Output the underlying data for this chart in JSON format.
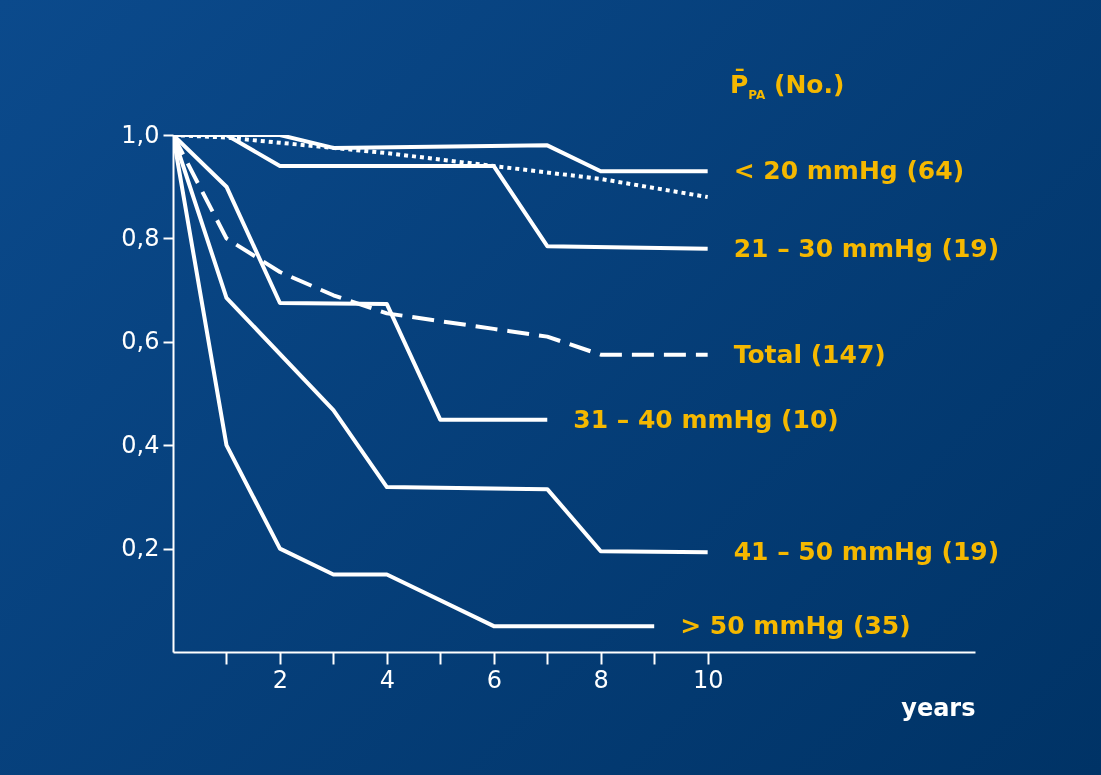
{
  "chart_data": {
    "type": "line",
    "xlabel": "years",
    "legend_title": "P̄$_{PA}$ (No.)",
    "xlim": [
      0,
      15
    ],
    "ylim": [
      0,
      1
    ],
    "xticks": [
      {
        "value": 1,
        "label": null
      },
      2,
      {
        "value": 3,
        "label": null
      },
      4,
      {
        "value": 5,
        "label": null
      },
      6,
      {
        "value": 7,
        "label": null
      },
      8,
      {
        "value": 9,
        "label": null
      },
      10
    ],
    "yticks": [
      {
        "value": 0.2,
        "label": "0,2"
      },
      {
        "value": 0.4,
        "label": "0,4"
      },
      {
        "value": 0.6,
        "label": "0,6"
      },
      {
        "value": 0.8,
        "label": "0,8"
      },
      {
        "value": 1,
        "label": "1,0"
      }
    ],
    "grid": false,
    "legend": false,
    "marker": "none",
    "series": [
      {
        "name": "< 20 mmHg (64)",
        "color": "#ffffff",
        "line_style": "solid",
        "x": [
          0,
          2,
          3,
          7,
          8,
          10
        ],
        "values": [
          1,
          1,
          0.975,
          0.98,
          0.93,
          0.93
        ]
      },
      {
        "name": "21 – 30 mmHg (19)",
        "color": "#ffffff",
        "line_style": "solid",
        "x": [
          0,
          1,
          2,
          6,
          7,
          10
        ],
        "values": [
          1,
          1,
          0.94,
          0.94,
          0.785,
          0.78
        ]
      },
      {
        "color": "#ffffff",
        "line_style": "dotted",
        "x": [
          0,
          1,
          2,
          4,
          6,
          8,
          10
        ],
        "values": [
          1,
          0.995,
          0.985,
          0.965,
          0.94,
          0.915,
          0.88
        ]
      },
      {
        "name": "Total (147)",
        "color": "#ffffff",
        "line_style": "dashed",
        "x": [
          0,
          1,
          2,
          3,
          4,
          5,
          6,
          7,
          8,
          10
        ],
        "values": [
          1,
          0.8,
          0.735,
          0.69,
          0.655,
          0.64,
          0.625,
          0.61,
          0.575,
          0.575
        ]
      },
      {
        "name": "31 – 40 mmHg (10)",
        "color": "#ffffff",
        "line_style": "solid",
        "x": [
          0,
          1,
          2,
          4,
          5,
          7
        ],
        "values": [
          1,
          0.9,
          0.675,
          0.673,
          0.449,
          0.449
        ]
      },
      {
        "name": "41 – 50 mmHg (19)",
        "color": "#ffffff",
        "line_style": "solid",
        "x": [
          0,
          1,
          3,
          4,
          7,
          8,
          10
        ],
        "values": [
          1,
          0.685,
          0.468,
          0.319,
          0.315,
          0.195,
          0.193
        ]
      },
      {
        "name": "> 50 mmHg (35)",
        "color": "#ffffff",
        "line_style": "solid",
        "x": [
          0,
          1,
          2,
          3,
          4,
          6,
          9
        ],
        "values": [
          1,
          0.4,
          0.2,
          0.15,
          0.15,
          0.05,
          0.05
        ]
      }
    ]
  }
}
